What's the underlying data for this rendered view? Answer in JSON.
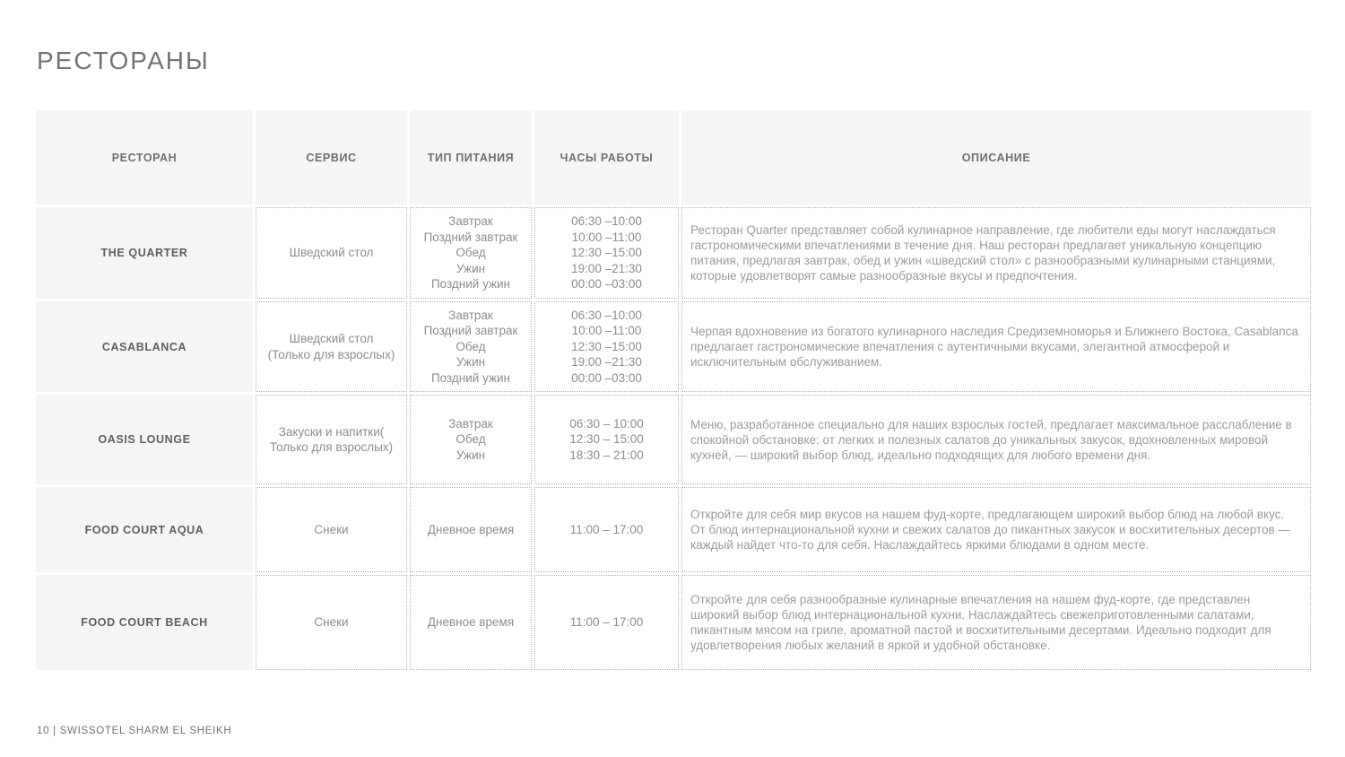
{
  "page": {
    "title": "РЕСТОРАНЫ",
    "footer": "10 | SWISSOTEL SHARM EL SHEIKH"
  },
  "colors": {
    "cell_fill": "#f5f5f5",
    "dotted_border": "#b3b3b3",
    "title_text": "#737373",
    "body_text": "#9c9c9c",
    "footer_text": "#7b6f64"
  },
  "table": {
    "headers": [
      "РЕСТОРАН",
      "СЕРВИС",
      "ТИП ПИТАНИЯ",
      "ЧАСЫ РАБОТЫ",
      "ОПИСАНИЕ"
    ],
    "rows": [
      {
        "name": "THE QUARTER",
        "service": [
          "Шведский стол"
        ],
        "meals": [
          "Завтрак",
          "Поздний завтрак",
          "Обед",
          "Ужин",
          "Поздний ужин"
        ],
        "hours": [
          "06:30 –10:00",
          "10:00 –11:00",
          "12:30 –15:00",
          "19:00 –21:30",
          "00:00 –03:00"
        ],
        "description": "Ресторан Quarter представляет собой кулинарное направление, где любители еды могут наслаждаться гастрономическими впечатлениями в течение дня. Наш ресторан предлагает уникальную концепцию питания, предлагая завтрак, обед и ужин «шведский стол» с разнообразными кулинарными станциями, которые удовлетворят самые разнообразные вкусы и предпочтения."
      },
      {
        "name": "CASABLANCA",
        "service": [
          "Шведский стол",
          "(Только для взрослых)"
        ],
        "meals": [
          "Завтрак",
          "Поздний завтрак",
          "Обед",
          "Ужин",
          "Поздний ужин"
        ],
        "hours": [
          "06:30 –10:00",
          "10:00 –11:00",
          "12:30 –15:00",
          "19:00 –21:30",
          "00:00 –03:00"
        ],
        "description": "Черпая вдохновение из богатого кулинарного наследия Средиземноморья и Ближнего Востока, Casablanca предлагает гастрономические впечатления с аутентичными вкусами, элегантной атмосферой и исключительным обслуживанием."
      },
      {
        "name": "OASIS LOUNGE",
        "service": [
          "Закуски и напитки(",
          "Только для взрослых)"
        ],
        "meals": [
          "Завтрак",
          "Обед",
          "Ужин"
        ],
        "hours": [
          "06:30 – 10:00",
          "12:30 – 15:00",
          "18:30 – 21:00"
        ],
        "description": "Меню, разработанное специально для наших взрослых гостей, предлагает максимальное расслабление в спокойной обстановке: от легких и полезных салатов до уникальных закусок, вдохновленных мировой кухней, — широкий выбор блюд, идеально подходящих для любого времени дня."
      },
      {
        "name": "FOOD COURT AQUA",
        "service": [
          "Снеки"
        ],
        "meals": [
          "Дневное время"
        ],
        "hours": [
          "11:00 – 17:00"
        ],
        "description": "Откройте для себя мир вкусов на нашем фуд-корте, предлагающем широкий выбор блюд на любой вкус. От блюд интернациональной кухни и свежих салатов до пикантных закусок и восхитительных десертов — каждый найдет что-то для себя. Наслаждайтесь яркими блюдами в одном месте."
      },
      {
        "name": "FOOD COURT BEACH",
        "service": [
          "Снеки"
        ],
        "meals": [
          "Дневное время"
        ],
        "hours": [
          "11:00 – 17:00"
        ],
        "description": "Откройте для себя разнообразные кулинарные впечатления на нашем фуд-корте, где представлен широкий выбор блюд интернациональной кухни. Наслаждайтесь свежеприготовленными салатами, пикантным мясом на гриле, ароматной пастой и восхитительными десертами. Идеально подходит для удовлетворения любых желаний в яркой и удобной обстановке."
      }
    ]
  }
}
